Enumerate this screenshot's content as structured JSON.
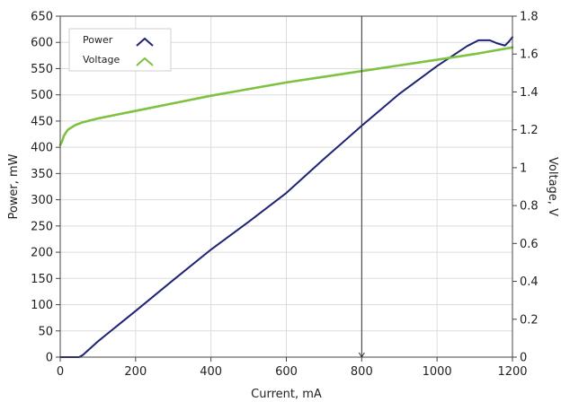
{
  "chart_data": {
    "type": "line",
    "title": "",
    "xlabel": "Current, mA",
    "ylabel_left": "Power, mW",
    "ylabel_right": "Voltage, V",
    "xlim": [
      0,
      1200
    ],
    "ylim_left": [
      0,
      650
    ],
    "ylim_right": [
      0,
      1.8
    ],
    "x_ticks": [
      "0",
      "200",
      "400",
      "600",
      "800",
      "1000",
      "1200"
    ],
    "y_left_ticks": [
      "0",
      "50",
      "100",
      "150",
      "200",
      "250",
      "300",
      "350",
      "400",
      "450",
      "500",
      "550",
      "600",
      "650"
    ],
    "y_right_ticks": [
      "0",
      "0.2",
      "0.4",
      "0.6",
      "0.8",
      "1",
      "1.2",
      "1.4",
      "1.6",
      "1.8"
    ],
    "grid": true,
    "legend_position": "top-left",
    "cursor_x": 800,
    "series": [
      {
        "name": "Power",
        "axis": "left",
        "color": "#1f2373",
        "x": [
          0,
          50,
          60,
          100,
          200,
          300,
          400,
          500,
          600,
          700,
          800,
          900,
          1000,
          1080,
          1110,
          1140,
          1160,
          1180,
          1190,
          1200
        ],
        "values": [
          0,
          0,
          4,
          30,
          88,
          147,
          205,
          258,
          313,
          378,
          441,
          502,
          555,
          593,
          604,
          604,
          598,
          594,
          601,
          610
        ]
      },
      {
        "name": "Voltage",
        "axis": "right",
        "color": "#7dc242",
        "x": [
          0,
          5,
          10,
          20,
          40,
          60,
          80,
          100,
          150,
          200,
          300,
          400,
          500,
          600,
          700,
          800,
          900,
          1000,
          1100,
          1200
        ],
        "values": [
          1.12,
          1.14,
          1.17,
          1.2,
          1.225,
          1.24,
          1.25,
          1.26,
          1.28,
          1.3,
          1.34,
          1.38,
          1.415,
          1.45,
          1.48,
          1.51,
          1.54,
          1.57,
          1.6,
          1.635
        ]
      }
    ]
  }
}
